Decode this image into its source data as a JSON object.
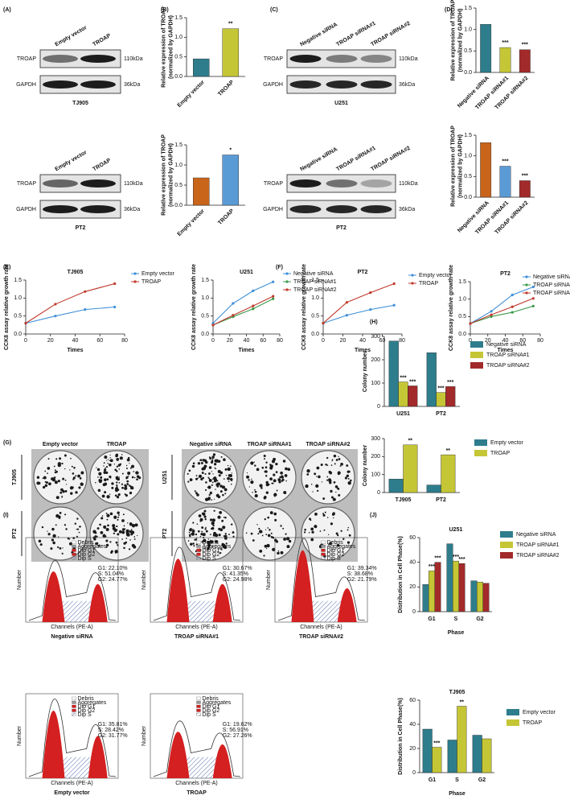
{
  "panel_labels": [
    "(A)",
    "(B)",
    "(C)",
    "(D)",
    "(E)",
    "(F)",
    "(G)",
    "(H)",
    "(I)",
    "(J)"
  ],
  "blots": [
    {
      "lanes": [
        "Empty vector",
        "TROAP"
      ],
      "rows": [
        "TROAP",
        "GAPDH"
      ],
      "sizes": [
        "110kDa",
        "36kDa"
      ],
      "cell_line": "TJ905"
    },
    {
      "lanes": [
        "Empty vector",
        "TROAP"
      ],
      "rows": [
        "TROAP",
        "GAPDH"
      ],
      "sizes": [
        "110kDa",
        "36kDa"
      ],
      "cell_line": "PT2"
    },
    {
      "lanes": [
        "Negative siRNA",
        "TROAP siRNA#1",
        "TROAP siRNA#2"
      ],
      "rows": [
        "TROAP",
        "GAPDH"
      ],
      "sizes": [
        "110kDa",
        "36kDa"
      ],
      "cell_line": "U251"
    },
    {
      "lanes": [
        "Negative siRNA",
        "TROAP siRNA#1",
        "TROAP siRNA#2"
      ],
      "rows": [
        "TROAP",
        "GAPDH"
      ],
      "sizes": [
        "110kDa",
        "36kDa"
      ],
      "cell_line": "PT2"
    }
  ],
  "colony": [
    {
      "columns": [
        "Empty vector",
        "TROAP"
      ],
      "rows": [
        "TJ905",
        "PT2"
      ]
    },
    {
      "columns": [
        "Negative siRNA",
        "TROAP siRNA#1",
        "TROAP siRNA#2"
      ],
      "rows": [
        "U251",
        "PT2"
      ]
    }
  ],
  "flow": {
    "legend": [
      "Debris",
      "Aggregates",
      "Dip G1",
      "Dip G2",
      "Dip S"
    ],
    "y_label": "Number",
    "x_label": "Channels (PE-A)",
    "plots": [
      {
        "label": "Negative siRNA",
        "stats": [
          "G1: 22.10%",
          "S: 51.04%",
          "G2: 24.77%"
        ]
      },
      {
        "label": "TROAP siRNA#1",
        "stats": [
          "G1: 30.67%",
          "S: 41.35%",
          "G2: 24.98%"
        ]
      },
      {
        "label": "TROAP siRNA#2",
        "stats": [
          "G1: 39.34%",
          "S: 38.68%",
          "G2: 21.79%"
        ]
      },
      {
        "label": "Empty vector",
        "stats": [
          "G1: 35.81%",
          "S: 28.42%",
          "G2: 31.77%"
        ]
      },
      {
        "label": "TROAP",
        "stats": [
          "G1: 19.62%",
          "S: 56.91%",
          "G2: 27.26%"
        ]
      }
    ]
  },
  "chart_data": [
    {
      "type": "bar",
      "ylabel": [
        "Relative expression of TROAP",
        "(normalized by GAPDH)"
      ],
      "categories": [
        "Empty vector",
        "TROAP"
      ],
      "values": [
        0.45,
        1.22
      ],
      "colors": [
        "#2e7d8c",
        "#c5c636"
      ],
      "marks": [
        null,
        "**"
      ],
      "ylim": [
        0,
        1.5
      ],
      "yticks": [
        {
          "value": 0,
          "label": "0.0"
        },
        0.5,
        {
          "value": 1,
          "label": "1.0"
        },
        1.5
      ]
    },
    {
      "type": "bar",
      "ylabel": [
        "Relative expression of TROAP",
        "(normalized by GAPDH)"
      ],
      "categories": [
        "Empty vector",
        "TROAP"
      ],
      "values": [
        0.68,
        1.25
      ],
      "colors": [
        "#c8651b",
        "#5b9bd5"
      ],
      "marks": [
        null,
        "*"
      ],
      "ylim": [
        0,
        1.5
      ],
      "yticks": [
        {
          "value": 0,
          "label": "0.0"
        },
        0.5,
        {
          "value": 1,
          "label": "1.0"
        },
        1.5
      ]
    },
    {
      "type": "bar",
      "ylabel": [
        "Relative expression of TROAP",
        "(normalized by GAPDH)"
      ],
      "categories": [
        "Negative siRNA",
        "TROAP siRNA#1",
        "TROAP siRNA#2"
      ],
      "values": [
        1.12,
        0.58,
        0.53
      ],
      "colors": [
        "#2e7d8c",
        "#c5c636",
        "#a32a2a"
      ],
      "marks": [
        null,
        "***",
        "***"
      ],
      "ylim": [
        0,
        1.5
      ],
      "yticks": [
        {
          "value": 0,
          "label": "0.0"
        },
        0.5,
        {
          "value": 1,
          "label": "1.0"
        },
        1.5
      ]
    },
    {
      "type": "bar",
      "ylabel": [
        "Relative expression of TROAP",
        "(normalized by GAPDH)"
      ],
      "categories": [
        "Negative siRNA",
        "TROAP siRNA#1",
        "TROAP siRNA#2"
      ],
      "values": [
        1.32,
        0.75,
        0.4
      ],
      "colors": [
        "#c8651b",
        "#5b9bd5",
        "#a32a2a"
      ],
      "marks": [
        null,
        "***",
        "***"
      ],
      "ylim": [
        0,
        1.5
      ],
      "yticks": [
        {
          "value": 0,
          "label": "0.0"
        },
        0.5,
        {
          "value": 1,
          "label": "1.0"
        },
        1.5
      ]
    },
    {
      "type": "line",
      "title": "TJ905",
      "ylabel": [
        "CCK8 assay relative growth rate"
      ],
      "xlabel": "Times",
      "x": [
        0,
        24,
        48,
        72
      ],
      "xlim": [
        0,
        80
      ],
      "xticks": [
        0,
        20,
        40,
        60,
        80
      ],
      "ylim": [
        0,
        1.5
      ],
      "yticks": [
        {
          "value": 0,
          "label": "0.0"
        },
        0.5,
        {
          "value": 1,
          "label": "1.0"
        },
        1.5
      ],
      "series": [
        {
          "name": "Empty vector",
          "color": "#3f8fd8",
          "values": [
            0.3,
            0.5,
            0.68,
            0.75
          ]
        },
        {
          "name": "TROAP",
          "color": "#c0392b",
          "values": [
            0.3,
            0.83,
            1.18,
            1.4
          ]
        }
      ]
    },
    {
      "type": "line",
      "title": "U251",
      "ylabel": [
        "CCK8 assay relative growth rate"
      ],
      "xlabel": "Times",
      "x": [
        0,
        24,
        48,
        72
      ],
      "xlim": [
        0,
        80
      ],
      "xticks": [
        0,
        20,
        40,
        60,
        80
      ],
      "ylim": [
        0,
        1.5
      ],
      "yticks": [
        {
          "value": 0,
          "label": "0.0"
        },
        0.5,
        {
          "value": 1,
          "label": "1.0"
        },
        1.5
      ],
      "series": [
        {
          "name": "Negative siRNA",
          "color": "#3f8fd8",
          "values": [
            0.3,
            0.85,
            1.2,
            1.45
          ]
        },
        {
          "name": "TROAP siRNA#1",
          "color": "#3a9a4a",
          "values": [
            0.25,
            0.48,
            0.7,
            0.98
          ]
        },
        {
          "name": "TROAP siRNA#2",
          "color": "#c0392b",
          "values": [
            0.25,
            0.52,
            0.78,
            1.05
          ]
        }
      ]
    },
    {
      "type": "line",
      "title": "PT2",
      "ylabel": [
        "CCK8 assay relative growth rate"
      ],
      "xlabel": "Times",
      "x": [
        0,
        24,
        48,
        72
      ],
      "xlim": [
        0,
        80
      ],
      "xticks": [
        0,
        20,
        40,
        60,
        80
      ],
      "ylim": [
        0,
        1.5
      ],
      "yticks": [
        {
          "value": 0,
          "label": "0.0"
        },
        0.5,
        {
          "value": 1,
          "label": "1.0"
        },
        1.5
      ],
      "series": [
        {
          "name": "Empty vector",
          "color": "#3f8fd8",
          "values": [
            0.3,
            0.52,
            0.68,
            0.8
          ]
        },
        {
          "name": "TROAP",
          "color": "#c0392b",
          "values": [
            0.3,
            0.88,
            1.15,
            1.4
          ]
        }
      ]
    },
    {
      "type": "line",
      "title": "PT2",
      "ylabel": [
        "CCK8 assay relative growth rate"
      ],
      "xlabel": "Times",
      "x": [
        0,
        24,
        48,
        72
      ],
      "xlim": [
        0,
        80
      ],
      "xticks": [
        0,
        20,
        40,
        60,
        80
      ],
      "ylim": [
        0,
        1.5
      ],
      "yticks": [
        {
          "value": 0,
          "label": "0.0"
        },
        0.5,
        {
          "value": 1,
          "label": "1.0"
        },
        1.5
      ],
      "series": [
        {
          "name": "Negative siRNA",
          "color": "#3f8fd8",
          "values": [
            0.3,
            0.65,
            1.12,
            1.35
          ]
        },
        {
          "name": "TROAP siRNA#1",
          "color": "#3a9a4a",
          "values": [
            0.3,
            0.5,
            0.62,
            0.8
          ]
        },
        {
          "name": "TROAP siRNA#2",
          "color": "#c0392b",
          "values": [
            0.3,
            0.55,
            0.78,
            1.02
          ]
        }
      ]
    },
    {
      "type": "bar",
      "ylabel": [
        "Colony number"
      ],
      "categories": [
        "U251",
        "PT2"
      ],
      "ylim": [
        0,
        300
      ],
      "yticks": [
        0,
        100,
        200,
        300
      ],
      "series": [
        {
          "name": "Negative siRNA",
          "color": "#2e7d8c",
          "values": [
            280,
            230
          ],
          "marks": [
            null,
            null
          ]
        },
        {
          "name": "TROAP siRNA#1",
          "color": "#c5c636",
          "values": [
            105,
            60
          ],
          "marks": [
            "***",
            "***"
          ]
        },
        {
          "name": "TROAP siRNA#2",
          "color": "#a32a2a",
          "values": [
            88,
            85
          ],
          "marks": [
            "***",
            "***"
          ]
        }
      ]
    },
    {
      "type": "bar",
      "ylabel": [
        "Colony number"
      ],
      "categories": [
        "TJ905",
        "PT2"
      ],
      "ylim": [
        0,
        300
      ],
      "yticks": [
        0,
        100,
        200,
        300
      ],
      "series": [
        {
          "name": "Empty vector",
          "color": "#2e7d8c",
          "values": [
            75,
            42
          ],
          "marks": [
            null,
            null
          ]
        },
        {
          "name": "TROAP",
          "color": "#c5c636",
          "values": [
            265,
            210
          ],
          "marks": [
            "**",
            "**"
          ]
        }
      ]
    },
    {
      "type": "bar",
      "title": "U251",
      "ylabel": [
        "Distribution in Cell Phase(%)"
      ],
      "xlabel": "Phase",
      "categories": [
        "G1",
        "S",
        "G2"
      ],
      "ylim": [
        0,
        60
      ],
      "yticks": [
        0,
        20,
        40,
        60
      ],
      "series": [
        {
          "name": "Negative siRNA",
          "color": "#2e7d8c",
          "values": [
            22,
            55,
            25
          ],
          "marks": [
            null,
            null,
            null
          ]
        },
        {
          "name": "TROAP siRNA#1",
          "color": "#c5c636",
          "values": [
            33,
            41,
            24
          ],
          "marks": [
            "***",
            "***",
            null
          ]
        },
        {
          "name": "TROAP siRNA#2",
          "color": "#a32a2a",
          "values": [
            40,
            39,
            23
          ],
          "marks": [
            "***",
            "***",
            null
          ]
        }
      ]
    },
    {
      "type": "bar",
      "title": "TJ905",
      "ylabel": [
        "Distribution in Cell Phase(%)"
      ],
      "xlabel": "Phase",
      "categories": [
        "G1",
        "S",
        "G2"
      ],
      "ylim": [
        0,
        60
      ],
      "yticks": [
        0,
        20,
        40,
        60
      ],
      "series": [
        {
          "name": "Empty vector",
          "color": "#2e7d8c",
          "values": [
            36,
            27,
            31
          ],
          "marks": [
            null,
            null,
            null
          ]
        },
        {
          "name": "TROAP",
          "color": "#c5c636",
          "values": [
            21,
            55,
            28
          ],
          "marks": [
            "***",
            "**",
            null
          ]
        }
      ]
    }
  ]
}
